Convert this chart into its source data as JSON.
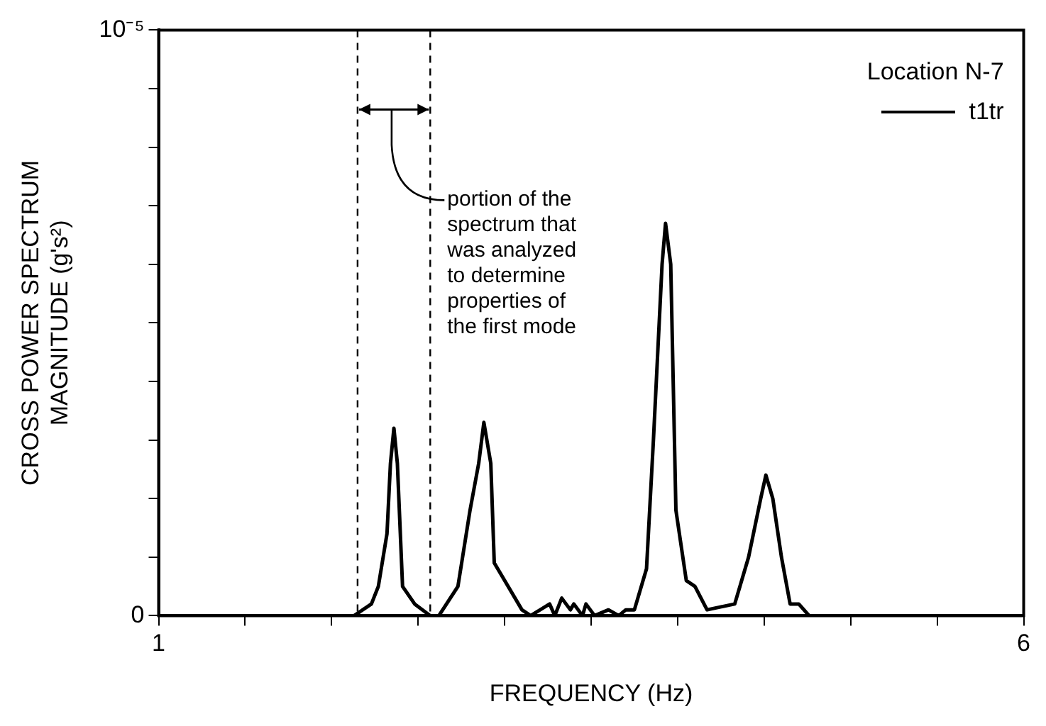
{
  "chart_data": {
    "type": "line",
    "xlabel": "FREQUENCY (Hz)",
    "ylabel": "CROSS POWER SPECTRUM\nMAGNITUDE (g's²)",
    "legend_title": "Location N-7",
    "legend": "top right",
    "grid": false,
    "marker": "none",
    "line_style": "solid",
    "xlim": [
      1,
      6
    ],
    "ylim": [
      0,
      1e-05
    ],
    "xticks": [
      1,
      {
        "value": 1.5,
        "label": null
      },
      {
        "value": 2,
        "label": null
      },
      {
        "value": 2.5,
        "label": null
      },
      {
        "value": 3,
        "label": null
      },
      {
        "value": 3.5,
        "label": null
      },
      {
        "value": 4,
        "label": null
      },
      {
        "value": 4.5,
        "label": null
      },
      {
        "value": 5,
        "label": null
      },
      {
        "value": 5.5,
        "label": null
      },
      6
    ],
    "yticks": [
      0,
      {
        "value": 1e-06,
        "label": null
      },
      {
        "value": 2e-06,
        "label": null
      },
      {
        "value": 3e-06,
        "label": null
      },
      {
        "value": 4e-06,
        "label": null
      },
      {
        "value": 5e-06,
        "label": null
      },
      {
        "value": 6e-06,
        "label": null
      },
      {
        "value": 7e-06,
        "label": null
      },
      {
        "value": 8e-06,
        "label": null
      },
      {
        "value": 9e-06,
        "label": null
      },
      {
        "value": 1e-05,
        "label": "10⁻⁵"
      }
    ],
    "ref_lines": [
      {
        "axis": "x",
        "value": 2.15,
        "label": null,
        "color": "#000000",
        "line_style": "dashed"
      },
      {
        "axis": "x",
        "value": 2.57,
        "label": null,
        "color": "#000000",
        "line_style": "dashed"
      }
    ],
    "annotations": [
      "portion of the\nspectrum that\nwas analyzed\nto determine\nproperties of\nthe first mode"
    ],
    "series": [
      {
        "name": "t1tr",
        "color": "#000000",
        "x": [
          1,
          2.13,
          2.23,
          2.27,
          2.32,
          2.34,
          2.36,
          2.38,
          2.41,
          2.48,
          2.57,
          2.62,
          2.73,
          2.8,
          2.85,
          2.88,
          2.92,
          2.94,
          3,
          3.1,
          3.15,
          3.26,
          3.29,
          3.33,
          3.38,
          3.4,
          3.45,
          3.47,
          3.52,
          3.6,
          3.66,
          3.7,
          3.75,
          3.82,
          3.86,
          3.91,
          3.93,
          3.96,
          3.99,
          4.05,
          4.1,
          4.17,
          4.33,
          4.41,
          4.48,
          4.51,
          4.55,
          4.6,
          4.65,
          4.7,
          4.76,
          5,
          6
        ],
        "values": [
          0,
          0,
          2e-07,
          5e-07,
          1.4e-06,
          2.6e-06,
          3.2e-06,
          2.6e-06,
          5e-07,
          2e-07,
          0,
          0,
          5e-07,
          1.8e-06,
          2.6e-06,
          3.3e-06,
          2.6e-06,
          9e-07,
          6e-07,
          1e-07,
          0,
          2e-07,
          0,
          3e-07,
          1e-07,
          2e-07,
          0,
          2e-07,
          0,
          1e-07,
          0,
          1e-07,
          1e-07,
          8e-07,
          3e-06,
          6e-06,
          6.7e-06,
          6e-06,
          1.8e-06,
          6e-07,
          5e-07,
          1e-07,
          2e-07,
          1e-06,
          2e-06,
          2.4e-06,
          2e-06,
          1e-06,
          2e-07,
          2e-07,
          0,
          0,
          0
        ]
      }
    ]
  }
}
